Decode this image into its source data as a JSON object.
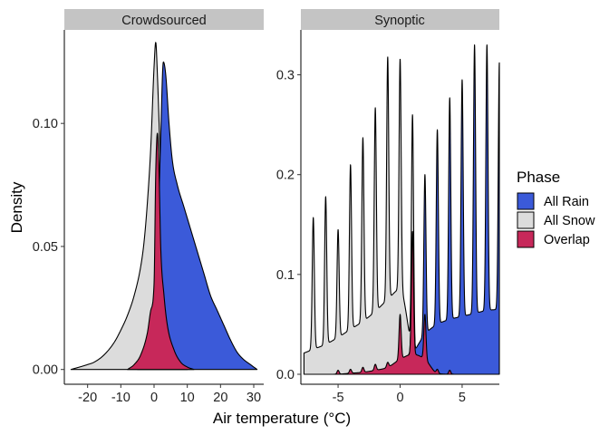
{
  "chart_data": {
    "type": "area",
    "subtype": "faceted density",
    "xlabel": "Air temperature (°C)",
    "ylabel": "Density",
    "legend": {
      "title": "Phase",
      "position": "right",
      "entries": [
        {
          "label": "All Rain",
          "color": "#3b5ad9"
        },
        {
          "label": "All Snow",
          "color": "#dcdcdc"
        },
        {
          "label": "Overlap",
          "color": "#c7285a"
        }
      ]
    },
    "facets": [
      {
        "title": "Crowdsourced",
        "xlim": [
          -27,
          33
        ],
        "ylim": [
          -0.006,
          0.138
        ],
        "xticks": [
          -20,
          -10,
          0,
          10,
          20,
          30
        ],
        "xtick_labels": [
          "-20",
          "-10",
          "0",
          "10",
          "20",
          "30"
        ],
        "yticks": [
          0,
          0.05,
          0.1
        ],
        "ytick_labels": [
          "0.00",
          "0.05",
          "0.10"
        ],
        "series": [
          {
            "name": "All Snow",
            "x": [
              -25,
              -20,
              -18,
              -15,
              -12,
              -10,
              -8,
              -6,
              -4,
              -3,
              -2,
              -1,
              0,
              0.5,
              1,
              2,
              3,
              4,
              5,
              6,
              8,
              10
            ],
            "y": [
              0,
              0.002,
              0.003,
              0.006,
              0.011,
              0.016,
              0.022,
              0.03,
              0.042,
              0.052,
              0.068,
              0.09,
              0.123,
              0.133,
              0.12,
              0.08,
              0.045,
              0.022,
              0.01,
              0.005,
              0.001,
              0
            ]
          },
          {
            "name": "All Rain",
            "x": [
              -5,
              -3,
              -1,
              0,
              1,
              2,
              2.8,
              3.5,
              4.5,
              5.5,
              7,
              9,
              11,
              13,
              15,
              17,
              19,
              21,
              23,
              25,
              27,
              29,
              31
            ],
            "y": [
              0,
              0.001,
              0.005,
              0.015,
              0.045,
              0.095,
              0.125,
              0.12,
              0.1,
              0.085,
              0.075,
              0.066,
              0.057,
              0.048,
              0.039,
              0.03,
              0.024,
              0.018,
              0.012,
              0.007,
              0.004,
              0.002,
              0
            ]
          },
          {
            "name": "Overlap",
            "x": [
              -8,
              -6,
              -4,
              -2,
              -1,
              0,
              0.5,
              1,
              1.5,
              2,
              3,
              4,
              6,
              8,
              10,
              12
            ],
            "y": [
              0,
              0.002,
              0.006,
              0.015,
              0.024,
              0.035,
              0.08,
              0.096,
              0.08,
              0.05,
              0.03,
              0.018,
              0.008,
              0.003,
              0.001,
              0
            ]
          }
        ]
      },
      {
        "title": "Synoptic",
        "xlim": [
          -8,
          8
        ],
        "ylim": [
          -0.01,
          0.345
        ],
        "xticks": [
          -5,
          0,
          5
        ],
        "xtick_labels": [
          "-5",
          "0",
          "5"
        ],
        "yticks": [
          0,
          0.1,
          0.2,
          0.3
        ],
        "ytick_labels": [
          "0.0",
          "0.1",
          "0.2",
          "0.3"
        ],
        "series": [
          {
            "name": "All Snow",
            "peaks_x": [
              -8,
              -7,
              -6,
              -5,
              -4,
              -3,
              -2,
              -1,
              0,
              1,
              2
            ],
            "peaks_y": [
              0.025,
              0.157,
              0.178,
              0.145,
              0.21,
              0.237,
              0.267,
              0.318,
              0.316,
              0.26,
              0.095
            ],
            "valleys_y": [
              0.02,
              0.025,
              0.03,
              0.037,
              0.045,
              0.053,
              0.063,
              0.075,
              0.085,
              0.025,
              0
            ]
          },
          {
            "name": "All Rain",
            "peaks_x": [
              1,
              2,
              3,
              4,
              5,
              6,
              7,
              8
            ],
            "peaks_y": [
              0.14,
              0.2,
              0.245,
              0.277,
              0.295,
              0.33,
              0.33,
              0.312
            ],
            "valleys_y": [
              0.02,
              0.04,
              0.05,
              0.055,
              0.058,
              0.061,
              0.064,
              0.065
            ]
          },
          {
            "name": "Overlap",
            "peaks_x": [
              -5,
              -4,
              -3,
              -2,
              -1,
              0,
              1,
              2,
              3,
              4
            ],
            "peaks_y": [
              0.004,
              0.005,
              0.007,
              0.01,
              0.012,
              0.06,
              0.143,
              0.06,
              0.005,
              0.004
            ],
            "valleys_y": [
              0,
              0.001,
              0.002,
              0.004,
              0.007,
              0.015,
              0.02,
              0.015,
              0.001,
              0
            ]
          }
        ]
      }
    ]
  }
}
